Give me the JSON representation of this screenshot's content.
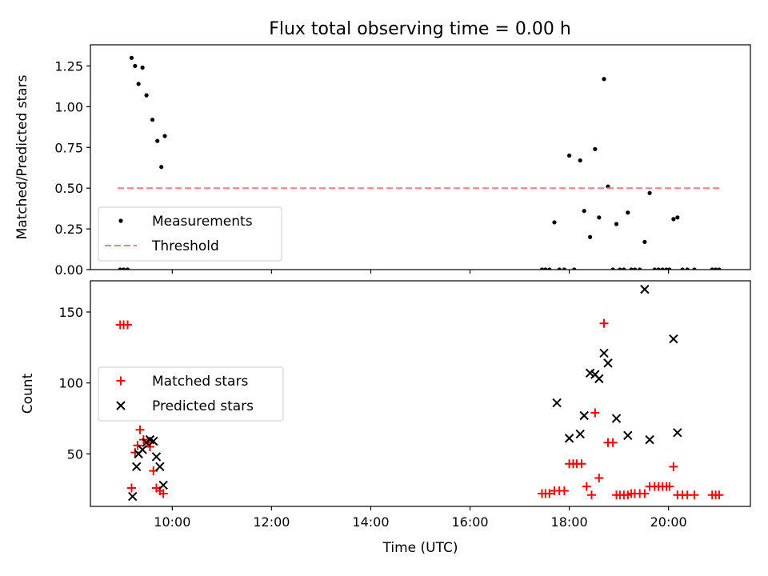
{
  "title": "Flux total observing time = 0.00 h",
  "chart_data": [
    {
      "type": "scatter",
      "ylabel": "Matched/Predicted stars",
      "xlabel": "",
      "xlim": [
        8.35,
        21.65
      ],
      "ylim": [
        0,
        1.38
      ],
      "x_ticks": [
        10,
        12,
        14,
        16,
        18,
        20
      ],
      "y_ticks": [
        0,
        0.25,
        0.5,
        0.75,
        1.0,
        1.25
      ],
      "y_tick_labels": [
        "0.00",
        "0.25",
        "0.50",
        "0.75",
        "1.00",
        "1.25"
      ],
      "show_x_tick_labels": false,
      "legend_placement": "lower-left",
      "series": [
        {
          "name": "Measurements",
          "marker": "dot",
          "color": "#000000",
          "x": [
            8.95,
            9.02,
            9.1,
            9.18,
            9.25,
            9.32,
            9.4,
            9.48,
            9.6,
            9.7,
            9.78,
            9.85,
            17.45,
            17.52,
            17.6,
            17.7,
            17.8,
            17.9,
            18.0,
            18.1,
            18.22,
            18.3,
            18.42,
            18.52,
            18.6,
            18.7,
            18.78,
            18.88,
            18.95,
            19.02,
            19.1,
            19.18,
            19.25,
            19.32,
            19.42,
            19.52,
            19.62,
            19.72,
            19.8,
            19.88,
            19.96,
            20.02,
            20.1,
            20.18,
            20.28,
            20.38,
            20.52,
            20.88,
            20.95,
            21.02
          ],
          "y": [
            0,
            0,
            0,
            1.3,
            1.25,
            1.14,
            1.24,
            1.07,
            0.92,
            0.79,
            0.63,
            0.82,
            0,
            0,
            0,
            0.29,
            0,
            0,
            0.7,
            0,
            0.67,
            0.36,
            0.2,
            0.74,
            0.32,
            1.17,
            0.51,
            0,
            0.28,
            0,
            0,
            0.35,
            0,
            0,
            0,
            0.17,
            0.47,
            0,
            0,
            0,
            0,
            0,
            0.31,
            0.32,
            0,
            0,
            0,
            0,
            0,
            0
          ]
        },
        {
          "name": "Threshold",
          "marker": "dashed-line",
          "color": "#f08080",
          "x": [
            8.9,
            21.05
          ],
          "y": [
            0.5,
            0.5
          ]
        }
      ]
    },
    {
      "type": "scatter",
      "ylabel": "Count",
      "xlabel": "Time (UTC)",
      "xlim": [
        8.35,
        21.65
      ],
      "ylim": [
        13,
        172
      ],
      "x_ticks": [
        10,
        12,
        14,
        16,
        18,
        20
      ],
      "x_tick_labels": [
        "10:00",
        "12:00",
        "14:00",
        "16:00",
        "18:00",
        "20:00"
      ],
      "y_ticks": [
        50,
        100,
        150
      ],
      "y_tick_labels": [
        "50",
        "100",
        "150"
      ],
      "legend_placement": "center-left",
      "series": [
        {
          "name": "Matched stars",
          "marker": "plus",
          "color": "#ff0000",
          "x": [
            8.95,
            9.02,
            9.1,
            9.18,
            9.25,
            9.3,
            9.35,
            9.42,
            9.5,
            9.55,
            9.62,
            9.68,
            9.75,
            9.82,
            17.45,
            17.52,
            17.6,
            17.7,
            17.8,
            17.9,
            18.0,
            18.08,
            18.15,
            18.25,
            18.35,
            18.45,
            18.52,
            18.6,
            18.7,
            18.78,
            18.88,
            18.95,
            19.02,
            19.1,
            19.18,
            19.25,
            19.32,
            19.42,
            19.52,
            19.62,
            19.72,
            19.8,
            19.88,
            19.96,
            20.02,
            20.1,
            20.18,
            20.28,
            20.38,
            20.52,
            20.88,
            20.95,
            21.02
          ],
          "y": [
            141,
            141,
            141,
            26,
            51,
            56,
            67,
            60,
            58,
            55,
            38,
            26,
            24,
            22,
            22,
            22,
            22,
            24,
            24,
            24,
            43,
            43,
            43,
            43,
            27,
            21,
            79,
            33,
            142,
            58,
            58,
            21,
            21,
            21,
            21,
            22,
            22,
            22,
            22,
            27,
            27,
            27,
            27,
            27,
            27,
            41,
            21,
            21,
            21,
            21,
            21,
            21,
            21
          ]
        },
        {
          "name": "Predicted stars",
          "marker": "x",
          "color": "#000000",
          "x": [
            9.2,
            9.28,
            9.32,
            9.4,
            9.48,
            9.55,
            9.62,
            9.68,
            9.75,
            9.82,
            17.75,
            18.0,
            18.22,
            18.3,
            18.42,
            18.52,
            18.6,
            18.7,
            18.78,
            18.95,
            19.18,
            19.52,
            19.62,
            20.1,
            20.18
          ],
          "y": [
            20,
            41,
            50,
            53,
            58,
            60,
            59,
            48,
            41,
            28,
            86,
            61,
            64,
            77,
            107,
            106,
            103,
            121,
            114,
            75,
            63,
            166,
            60,
            131,
            65
          ]
        }
      ]
    }
  ]
}
